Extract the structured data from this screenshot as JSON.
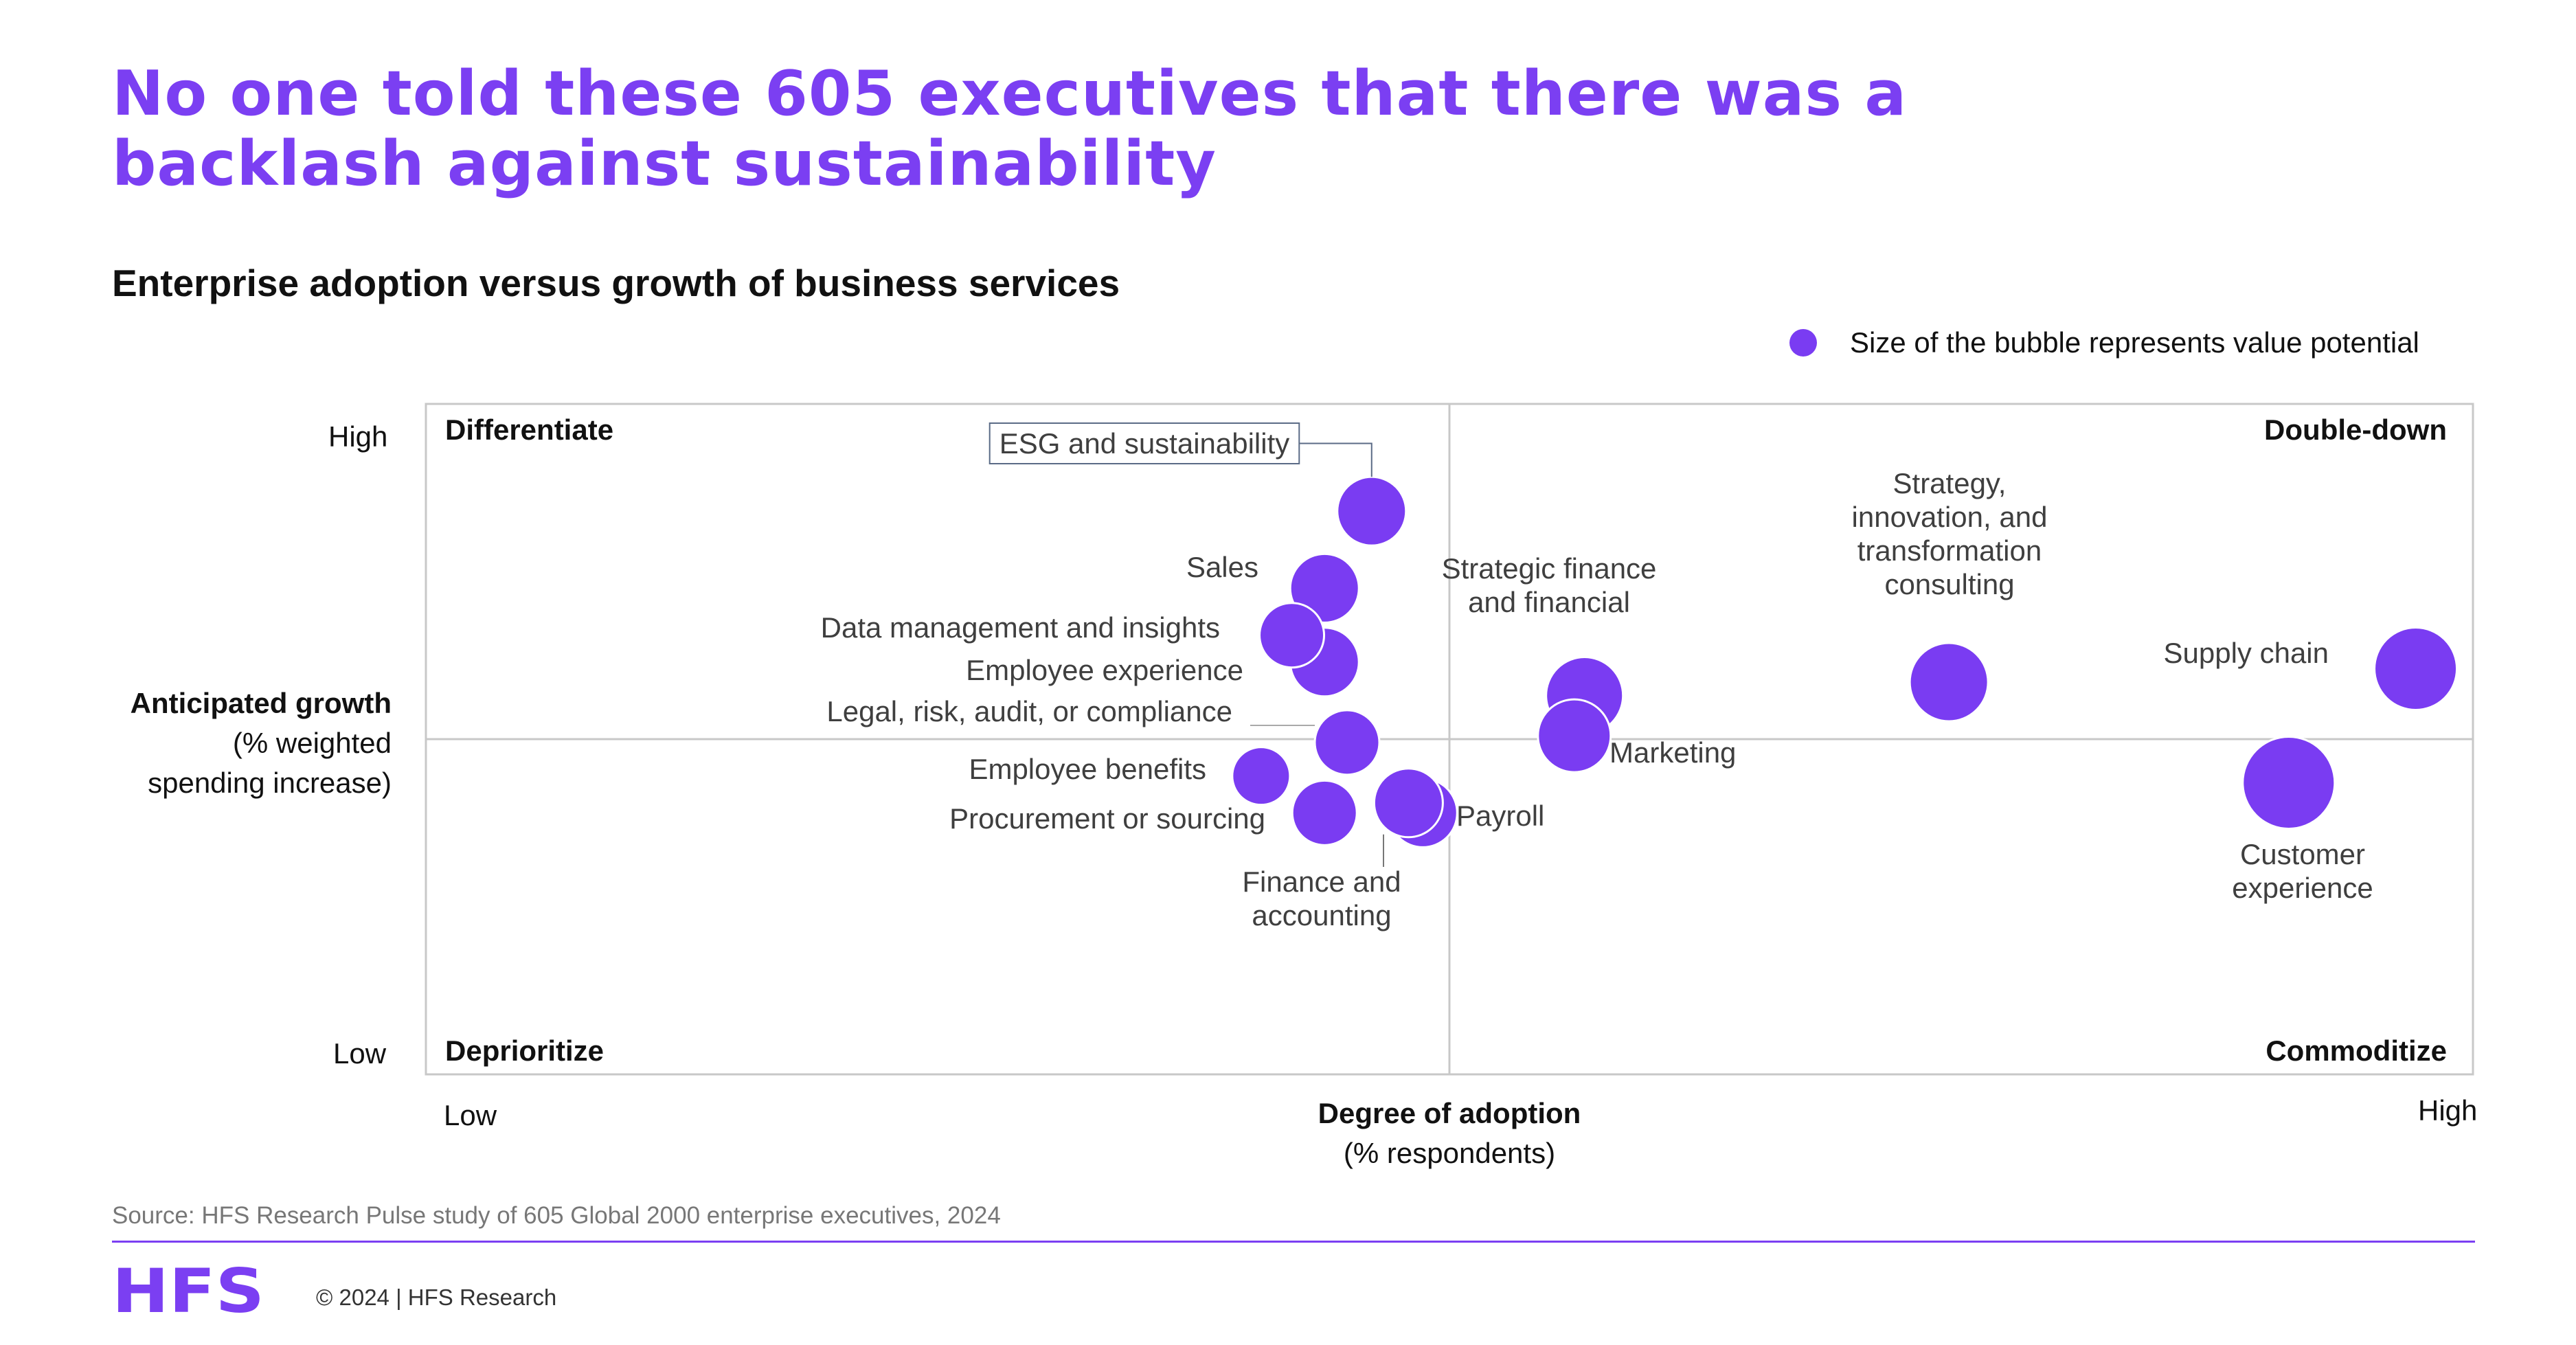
{
  "title_lines": [
    "No one told these 605 executives that there was a",
    "backlash against sustainability"
  ],
  "subtitle": "Enterprise adoption versus growth of business services",
  "legend": {
    "label": "Size of the bubble represents value potential",
    "color": "#7a3cf2"
  },
  "axes": {
    "y_high": "High",
    "y_low": "Low",
    "y_title_bold": "Anticipated growth",
    "y_title_line2": "(% weighted",
    "y_title_line3": "spending increase)",
    "x_low": "Low",
    "x_high": "High",
    "x_title_bold": "Degree of adoption",
    "x_title_line2": "(% respondents)"
  },
  "source": "Source: HFS Research Pulse study of 605 Global 2000 enterprise executives, 2024",
  "footer": {
    "logo_text": "HFS",
    "copyright": "© 2024 | HFS Research"
  },
  "colors": {
    "accent": "#7b3ff2",
    "bubble": "#7a3cf2",
    "bubble_stroke": "#ffffff",
    "grid": "#c8c8c8",
    "label": "#3f3f3f"
  },
  "chart_data": {
    "type": "scatter",
    "subtype": "bubble",
    "xlabel": "Degree of adoption",
    "ylabel": "Anticipated growth",
    "x_range": [
      "Low",
      "High"
    ],
    "y_range": [
      "Low",
      "High"
    ],
    "xlim": [
      0,
      100
    ],
    "ylim": [
      0,
      100
    ],
    "quadrant_midpoints": {
      "x": 50,
      "y": 50
    },
    "quadrants": [
      {
        "label": "Differentiate",
        "position": "top-left"
      },
      {
        "label": "Double-down",
        "position": "top-right"
      },
      {
        "label": "Deprioritize",
        "position": "bottom-left"
      },
      {
        "label": "Commoditize",
        "position": "bottom-right"
      }
    ],
    "points": [
      {
        "label": "ESG and sustainability",
        "x": 46.2,
        "y": 84,
        "size": 50
      },
      {
        "label": "Sales",
        "x": 43.9,
        "y": 72.5,
        "size": 50
      },
      {
        "label": "Employee experience",
        "x": 43.9,
        "y": 61.5,
        "size": 50
      },
      {
        "label": "Data management and insights",
        "x": 42.3,
        "y": 65.5,
        "size": 47
      },
      {
        "label": "Legal, risk, audit, or compliance",
        "x": 45.0,
        "y": 49.5,
        "size": 47
      },
      {
        "label": "Employee benefits",
        "x": 40.8,
        "y": 44.5,
        "size": 42
      },
      {
        "label": "Procurement or sourcing",
        "x": 43.9,
        "y": 39,
        "size": 47
      },
      {
        "label": "Payroll",
        "x": 48.7,
        "y": 39,
        "size": 50
      },
      {
        "label": "Finance and accounting",
        "x": 48.0,
        "y": 40.5,
        "size": 50
      },
      {
        "label": "Strategic finance and financial",
        "x": 56.6,
        "y": 56.5,
        "size": 56
      },
      {
        "label": "Marketing",
        "x": 56.1,
        "y": 50.5,
        "size": 53
      },
      {
        "label": "Strategy, innovation, and transformation consulting",
        "x": 74.4,
        "y": 58.5,
        "size": 57
      },
      {
        "label": "Supply chain",
        "x": 97.2,
        "y": 60.5,
        "size": 60
      },
      {
        "label": "Customer experience",
        "x": 91.0,
        "y": 43.5,
        "size": 67
      }
    ]
  }
}
